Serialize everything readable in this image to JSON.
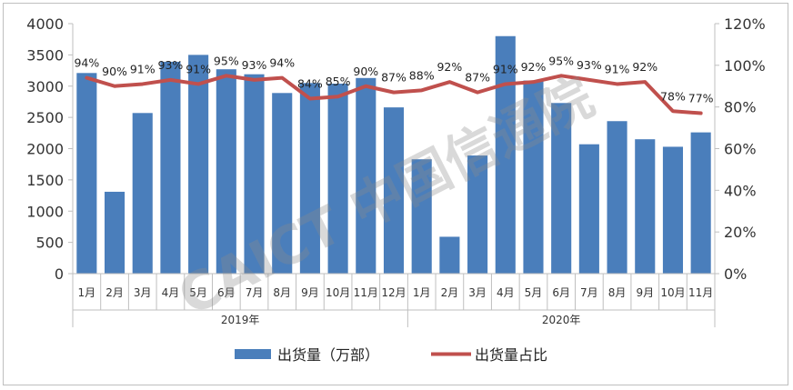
{
  "chart_data": {
    "type": "bar+line",
    "categories": [
      "1月",
      "2月",
      "3月",
      "4月",
      "5月",
      "6月",
      "7月",
      "8月",
      "9月",
      "10月",
      "11月",
      "12月",
      "1月",
      "2月",
      "3月",
      "4月",
      "5月",
      "6月",
      "7月",
      "8月",
      "9月",
      "10月",
      "11月"
    ],
    "groups": [
      {
        "label": "2019年",
        "start": 0,
        "count": 12
      },
      {
        "label": "2020年",
        "start": 12,
        "count": 11
      }
    ],
    "series": [
      {
        "name": "出货量（万部）",
        "type": "bar",
        "axis": "left",
        "color": "#4a7ebb",
        "values": [
          3210,
          1310,
          2570,
          3390,
          3500,
          3270,
          3190,
          2890,
          3050,
          3040,
          3130,
          2660,
          1830,
          590,
          1890,
          3800,
          3090,
          2730,
          2070,
          2440,
          2150,
          2030,
          2260
        ]
      },
      {
        "name": "出货量占比",
        "type": "line",
        "axis": "right",
        "color": "#c0504d",
        "values": [
          94,
          90,
          91,
          93,
          91,
          95,
          93,
          94,
          84,
          85,
          90,
          87,
          88,
          92,
          87,
          91,
          92,
          95,
          93,
          91,
          92,
          78,
          77
        ],
        "labels": [
          "94%",
          "90%",
          "91%",
          "93%",
          "91%",
          "95%",
          "93%",
          "94%",
          "84%",
          "85%",
          "90%",
          "87%",
          "88%",
          "92%",
          "87%",
          "91%",
          "92%",
          "95%",
          "93%",
          "91%",
          "92%",
          "78%",
          "77%"
        ]
      }
    ],
    "yleft": {
      "min": 0,
      "max": 4000,
      "ticks": [
        "0",
        "500",
        "1000",
        "1500",
        "2000",
        "2500",
        "3000",
        "3500",
        "4000"
      ]
    },
    "yright": {
      "min": 0,
      "max": 120,
      "ticks": [
        "0%",
        "20%",
        "40%",
        "60%",
        "80%",
        "100%",
        "120%"
      ]
    },
    "legend_position": "bottom",
    "grid": false
  },
  "watermark": "CAICT 中国信通院"
}
